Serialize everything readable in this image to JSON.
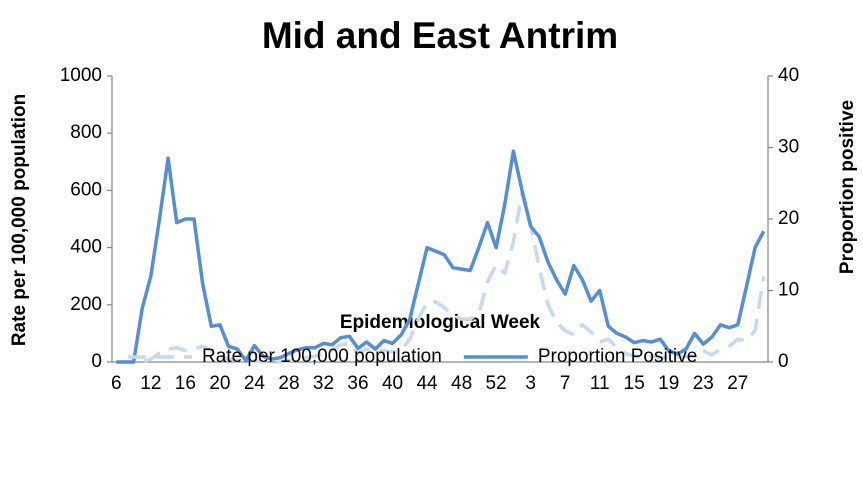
{
  "chart_data": {
    "type": "line",
    "title": "Mid and East Antrim",
    "x_label": "Epidemiological Week",
    "y_label": "Rate per 100,000 population",
    "y2_label": "Proportion positive",
    "categories": [
      "6",
      null,
      null,
      null,
      "12",
      null,
      null,
      null,
      "16",
      null,
      null,
      null,
      "20",
      null,
      null,
      null,
      "24",
      null,
      null,
      null,
      "28",
      null,
      null,
      null,
      "32",
      null,
      null,
      null,
      "36",
      null,
      null,
      null,
      "40",
      null,
      null,
      null,
      "44",
      null,
      null,
      null,
      "48",
      null,
      null,
      null,
      "52",
      null,
      null,
      null,
      "3",
      null,
      null,
      null,
      "7",
      null,
      null,
      null,
      "11",
      null,
      null,
      null,
      "15",
      null,
      null,
      null,
      "19",
      null,
      null,
      null,
      "23",
      null,
      null,
      null,
      "27",
      null,
      null,
      null
    ],
    "ylim": [
      0,
      1000
    ],
    "yticks": [
      0,
      200,
      400,
      600,
      800,
      1000
    ],
    "y2lim": [
      0,
      40
    ],
    "y2ticks": [
      0,
      10,
      20,
      30,
      40
    ],
    "grid": false,
    "legend": "bottom",
    "series": [
      {
        "name": "Rate per 100,000 population",
        "color": "#c6d9f1",
        "dashed": true,
        "values": [
          0,
          0,
          0,
          0,
          10,
          30,
          45,
          50,
          40,
          45,
          55,
          40,
          20,
          10,
          5,
          0,
          5,
          0,
          0,
          0,
          5,
          10,
          15,
          20,
          30,
          40,
          60,
          65,
          30,
          45,
          35,
          40,
          35,
          40,
          80,
          150,
          210,
          210,
          190,
          165,
          150,
          150,
          170,
          280,
          340,
          310,
          420,
          590,
          480,
          330,
          200,
          140,
          110,
          95,
          130,
          105,
          70,
          80,
          50,
          30,
          20,
          15,
          20,
          15,
          15,
          15,
          20,
          20,
          40,
          25,
          45,
          55,
          80,
          75,
          110,
          300
        ]
      },
      {
        "name": "Proportion Positive",
        "color": "#558ed5",
        "axis": "y2",
        "values": [
          0,
          0,
          0,
          7.5,
          12,
          20,
          28.5,
          19.5,
          20,
          20,
          11,
          5,
          5.2,
          2.2,
          1.8,
          0.2,
          2.3,
          0.8,
          0.4,
          0.6,
          1.2,
          1.7,
          2,
          2,
          2.6,
          2.4,
          3.4,
          3.6,
          1.9,
          2.8,
          1.8,
          3,
          2.6,
          3.8,
          6,
          11,
          16,
          15.5,
          15,
          13.2,
          13,
          12.8,
          16,
          19.5,
          16,
          22,
          29.5,
          24,
          19,
          17.5,
          14,
          11.5,
          9.5,
          13.5,
          11.5,
          8.5,
          10,
          5,
          4,
          3.5,
          2.7,
          3,
          2.8,
          3.2,
          1.6,
          1.1,
          1.8,
          4,
          2.5,
          3.5,
          5.2,
          4.8,
          5.2,
          10.5,
          16,
          18.3
        ]
      }
    ]
  }
}
